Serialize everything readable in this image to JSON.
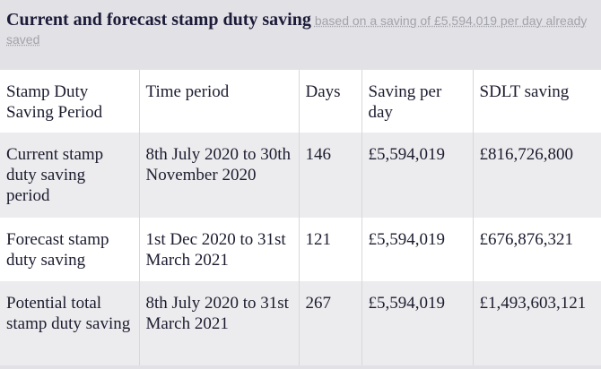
{
  "header": {
    "title": "Current and forecast stamp duty saving",
    "subtitle": "based on a saving of £5,594,019 per day already saved"
  },
  "table": {
    "columns": [
      "Stamp Duty Saving Period",
      "Time period",
      "Days",
      "Saving per day",
      "SDLT saving"
    ],
    "rows": [
      [
        "Current stamp duty saving period",
        "8th July 2020 to 30th November 2020",
        "146",
        "£5,594,019",
        "£816,726,800"
      ],
      [
        "Forecast stamp duty saving",
        "1st Dec 2020 to 31st March 2021",
        "121",
        "£5,594,019",
        "£676,876,321"
      ],
      [
        "Potential total stamp duty saving",
        "8th July 2020 to 31st March 2021",
        "267",
        "£5,594,019",
        "£1,493,603,121"
      ]
    ]
  }
}
